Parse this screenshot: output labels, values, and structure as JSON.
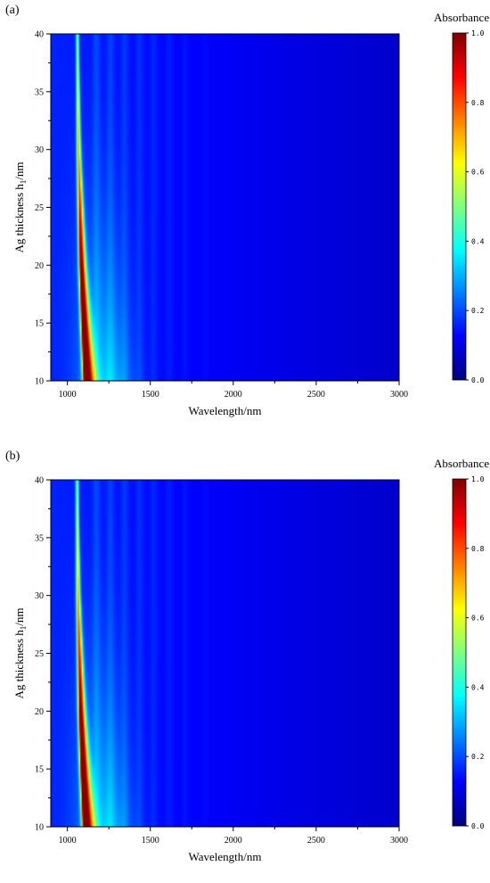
{
  "chart_data": [
    {
      "type": "heatmap",
      "panel_label": "(a)",
      "xlabel": "Wavelength/nm",
      "ylabel_main": "Ag thickness h",
      "ylabel_sub": "1",
      "ylabel_tail": "/nm",
      "x_ticks": [
        1000,
        1500,
        2000,
        2500,
        3000
      ],
      "y_ticks": [
        10,
        15,
        20,
        25,
        30,
        35,
        40
      ],
      "xlim": [
        900,
        3000
      ],
      "ylim": [
        10,
        40
      ],
      "colorbar": {
        "title": "Absorbance",
        "ticks": [
          "0.0",
          "0.2",
          "0.4",
          "0.6",
          "0.8",
          "1.0"
        ],
        "range": [
          0,
          1
        ],
        "colormap": "jet"
      },
      "resonance": {
        "description_points": [
          {
            "thickness": 40,
            "wavelength": 1060,
            "absorbance": 0.35
          },
          {
            "thickness": 30,
            "wavelength": 1067,
            "absorbance": 0.55
          },
          {
            "thickness": 20,
            "wavelength": 1082,
            "absorbance": 0.85
          },
          {
            "thickness": 15,
            "wavelength": 1095,
            "absorbance": 0.95
          },
          {
            "thickness": 10,
            "wavelength": 1110,
            "absorbance": 1.0
          }
        ]
      },
      "background_absorbance": 0.15,
      "fringe_wavelengths": [
        1175,
        1260,
        1345,
        1435,
        1520,
        1615,
        1710,
        1830,
        1950
      ]
    },
    {
      "type": "heatmap",
      "panel_label": "(b)",
      "xlabel": "Wavelength/nm",
      "ylabel_main": "Ag thickness h",
      "ylabel_sub": "1",
      "ylabel_tail": "/nm",
      "x_ticks": [
        1000,
        1500,
        2000,
        2500,
        3000
      ],
      "y_ticks": [
        10,
        15,
        20,
        25,
        30,
        35,
        40
      ],
      "xlim": [
        900,
        3000
      ],
      "ylim": [
        10,
        40
      ],
      "colorbar": {
        "title": "Absorbance",
        "ticks": [
          "0.0",
          "0.2",
          "0.4",
          "0.6",
          "0.8",
          "1.0"
        ],
        "range": [
          0,
          1
        ],
        "colormap": "jet"
      },
      "resonance": {
        "description_points": [
          {
            "thickness": 40,
            "wavelength": 1058,
            "absorbance": 0.35
          },
          {
            "thickness": 30,
            "wavelength": 1064,
            "absorbance": 0.55
          },
          {
            "thickness": 20,
            "wavelength": 1078,
            "absorbance": 0.85
          },
          {
            "thickness": 15,
            "wavelength": 1090,
            "absorbance": 0.95
          },
          {
            "thickness": 10,
            "wavelength": 1105,
            "absorbance": 1.0
          }
        ]
      },
      "background_absorbance": 0.15,
      "fringe_wavelengths": [
        1175,
        1260,
        1345,
        1435,
        1520,
        1615,
        1710,
        1830,
        1950
      ]
    }
  ]
}
